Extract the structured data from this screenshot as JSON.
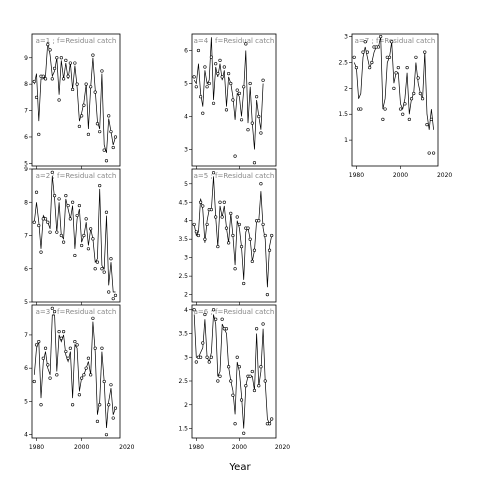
{
  "chart_data": {
    "type": "line",
    "title": "",
    "xlabel": "Year",
    "ylabel": "",
    "grid": false,
    "panels": [
      {
        "title": "a=1 ; f=Residual catch",
        "xlim": [
          1978,
          2017
        ],
        "ylim": [
          4.9,
          9.9
        ],
        "yticks": [
          5,
          6,
          7,
          8,
          9
        ],
        "xticks": [
          1980,
          2000,
          2020
        ],
        "show_xticks": false,
        "points_x": [
          1979,
          1980,
          1981,
          1982,
          1983,
          1984,
          1985,
          1986,
          1987,
          1988,
          1989,
          1990,
          1991,
          1992,
          1993,
          1994,
          1995,
          1996,
          1997,
          1998,
          1999,
          2000,
          2001,
          2002,
          2003,
          2004,
          2005,
          2006,
          2007,
          2008,
          2009,
          2010,
          2011,
          2012,
          2013,
          2014,
          2015
        ],
        "points_y": [
          8.1,
          7.5,
          6.1,
          8.3,
          8.3,
          8.2,
          9.5,
          9.3,
          8.2,
          8.6,
          9.0,
          7.4,
          9.0,
          8.2,
          8.9,
          8.3,
          8.8,
          7.8,
          8.8,
          8.0,
          6.4,
          6.8,
          7.2,
          8.0,
          6.1,
          7.9,
          9.1,
          7.7,
          6.5,
          6.2,
          8.5,
          5.5,
          5.1,
          6.8,
          6.2,
          5.6,
          6.0
        ],
        "line_y": [
          8.0,
          8.4,
          6.6,
          8.2,
          8.2,
          8.3,
          9.6,
          9.1,
          8.3,
          8.5,
          9.0,
          7.6,
          8.9,
          8.2,
          8.8,
          8.2,
          8.8,
          7.8,
          8.7,
          7.9,
          6.6,
          6.9,
          7.3,
          8.0,
          6.3,
          7.9,
          9.0,
          7.8,
          6.6,
          6.3,
          8.4,
          5.7,
          5.4,
          6.7,
          6.2,
          5.7,
          6.0
        ]
      },
      {
        "title": "a=4 ; f=Residual catch",
        "xlim": [
          1978,
          2017
        ],
        "ylim": [
          2.5,
          6.5
        ],
        "yticks": [
          3,
          4,
          5,
          6
        ],
        "xticks": [
          1980,
          2000,
          2020
        ],
        "show_xticks": false,
        "points_x": [
          1979,
          1980,
          1981,
          1982,
          1983,
          1984,
          1985,
          1986,
          1987,
          1988,
          1989,
          1990,
          1991,
          1992,
          1993,
          1994,
          1995,
          1996,
          1997,
          1998,
          1999,
          2000,
          2001,
          2002,
          2003,
          2004,
          2005,
          2006,
          2007,
          2008,
          2009,
          2010,
          2011
        ],
        "points_y": [
          5.2,
          4.9,
          6.0,
          4.6,
          4.1,
          5.5,
          4.9,
          5.0,
          5.8,
          4.4,
          5.6,
          5.3,
          5.7,
          5.2,
          5.5,
          4.2,
          5.3,
          5.0,
          4.5,
          2.8,
          4.8,
          4.7,
          3.9,
          4.9,
          6.2,
          3.6,
          5.0,
          3.8,
          2.6,
          4.6,
          4.0,
          3.5,
          5.1
        ],
        "line_y": [
          5.1,
          5.0,
          5.6,
          4.7,
          4.3,
          5.4,
          5.0,
          5.1,
          6.4,
          4.5,
          5.5,
          5.2,
          5.6,
          5.1,
          5.4,
          4.3,
          5.2,
          5.0,
          4.6,
          3.9,
          4.7,
          4.6,
          4.0,
          4.8,
          6.0,
          3.8,
          4.9,
          3.8,
          3.0,
          4.5,
          4.0,
          3.6,
          5.0
        ]
      },
      {
        "title": "a=7 ; f=Residual catch",
        "xlim": [
          1978,
          2017
        ],
        "ylim": [
          0.5,
          3.05
        ],
        "yticks": [
          1.0,
          1.5,
          2.0,
          2.5,
          3.0
        ],
        "xticks": [
          1980,
          2000,
          2020
        ],
        "show_xticks": true,
        "points_x": [
          1979,
          1980,
          1981,
          1982,
          1983,
          1984,
          1985,
          1986,
          1987,
          1988,
          1989,
          1990,
          1991,
          1992,
          1993,
          1994,
          1995,
          1996,
          1997,
          1998,
          1999,
          2000,
          2001,
          2002,
          2003,
          2004,
          2005,
          2006,
          2007,
          2008,
          2009,
          2010,
          2011,
          2012,
          2013,
          2014,
          2015
        ],
        "points_y": [
          2.6,
          2.4,
          1.6,
          1.6,
          2.7,
          2.9,
          2.7,
          2.4,
          2.5,
          2.8,
          2.8,
          2.8,
          3.0,
          1.4,
          1.6,
          2.6,
          2.6,
          2.9,
          2.0,
          2.3,
          2.4,
          1.6,
          1.5,
          1.7,
          2.4,
          1.4,
          1.8,
          1.9,
          2.6,
          2.2,
          1.9,
          1.8,
          2.7,
          1.3,
          0.75,
          1.4,
          0.75
        ],
        "line_y": [
          2.5,
          2.4,
          1.8,
          1.9,
          2.6,
          2.8,
          2.6,
          2.4,
          2.5,
          2.7,
          2.8,
          2.8,
          3.0,
          1.6,
          1.8,
          2.5,
          2.6,
          2.9,
          2.1,
          2.3,
          2.3,
          1.7,
          1.6,
          1.8,
          2.3,
          1.5,
          1.8,
          1.9,
          2.5,
          2.1,
          1.9,
          1.8,
          2.7,
          1.5,
          1.2,
          1.6,
          1.2
        ]
      },
      {
        "title": "a=2 ; f=Residual catch",
        "xlim": [
          1978,
          2017
        ],
        "ylim": [
          5.0,
          9.0
        ],
        "yticks": [
          5,
          6,
          7,
          8,
          9
        ],
        "xticks": [
          1980,
          2000,
          2020
        ],
        "show_xticks": false,
        "points_x": [
          1979,
          1980,
          1981,
          1982,
          1983,
          1984,
          1985,
          1986,
          1987,
          1988,
          1989,
          1990,
          1991,
          1992,
          1993,
          1994,
          1995,
          1996,
          1997,
          1998,
          1999,
          2000,
          2001,
          2002,
          2003,
          2004,
          2005,
          2006,
          2007,
          2008,
          2009,
          2010,
          2011,
          2012,
          2013,
          2014,
          2015
        ],
        "points_y": [
          7.4,
          8.3,
          7.3,
          6.5,
          7.5,
          7.5,
          7.4,
          7.1,
          8.9,
          8.2,
          7.1,
          8.1,
          7.0,
          6.8,
          8.2,
          7.9,
          7.5,
          8.0,
          6.4,
          7.6,
          7.9,
          6.7,
          7.0,
          7.5,
          6.6,
          7.2,
          6.9,
          6.0,
          6.2,
          8.5,
          6.0,
          5.9,
          7.7,
          5.3,
          6.3,
          5.1,
          5.2
        ],
        "line_y": [
          7.4,
          8.0,
          7.4,
          6.6,
          7.6,
          7.5,
          7.4,
          7.2,
          8.8,
          8.1,
          7.1,
          8.0,
          7.0,
          6.9,
          8.1,
          7.8,
          7.5,
          7.9,
          6.6,
          7.5,
          7.8,
          6.8,
          7.0,
          7.4,
          6.7,
          7.2,
          6.9,
          6.2,
          6.3,
          8.4,
          6.1,
          6.0,
          7.6,
          5.5,
          6.2,
          5.3,
          5.3
        ]
      },
      {
        "title": "a=5 ; f=Residual catch",
        "xlim": [
          1978,
          2017
        ],
        "ylim": [
          1.8,
          5.4
        ],
        "yticks": [
          2.0,
          2.5,
          3.0,
          3.5,
          4.0,
          4.5,
          5.0
        ],
        "xticks": [
          1980,
          2000,
          2020
        ],
        "show_xticks": false,
        "points_x": [
          1979,
          1980,
          1981,
          1982,
          1983,
          1984,
          1985,
          1986,
          1987,
          1988,
          1989,
          1990,
          1991,
          1992,
          1993,
          1994,
          1995,
          1996,
          1997,
          1998,
          1999,
          2000,
          2001,
          2002,
          2003,
          2004,
          2005,
          2006,
          2007,
          2008,
          2009,
          2010,
          2011,
          2012,
          2013,
          2014,
          2015
        ],
        "points_y": [
          3.9,
          3.7,
          3.6,
          4.5,
          4.4,
          3.5,
          3.9,
          4.3,
          4.3,
          5.3,
          4.1,
          3.3,
          4.5,
          4.1,
          4.5,
          3.8,
          3.4,
          4.2,
          3.6,
          2.7,
          4.1,
          3.9,
          3.3,
          2.3,
          3.8,
          3.8,
          3.5,
          2.9,
          3.2,
          4.0,
          4.0,
          5.0,
          3.9,
          3.6,
          2.0,
          3.2,
          3.6
        ],
        "line_y": [
          3.9,
          3.6,
          3.7,
          4.6,
          4.3,
          3.4,
          4.0,
          4.3,
          4.3,
          5.2,
          4.1,
          3.3,
          4.4,
          4.1,
          4.4,
          3.8,
          3.4,
          4.2,
          3.6,
          2.8,
          4.0,
          3.8,
          3.3,
          2.4,
          3.7,
          3.8,
          3.5,
          2.9,
          3.2,
          4.0,
          4.0,
          4.8,
          3.8,
          3.5,
          2.2,
          3.3,
          3.6
        ]
      },
      {
        "title": "a=3 ; f=Residual catch",
        "xlim": [
          1978,
          2017
        ],
        "ylim": [
          3.9,
          7.9
        ],
        "yticks": [
          4,
          5,
          6,
          7
        ],
        "xticks": [
          1980,
          2000,
          2020
        ],
        "show_xticks": true,
        "points_x": [
          1979,
          1980,
          1981,
          1982,
          1983,
          1984,
          1985,
          1986,
          1987,
          1988,
          1989,
          1990,
          1991,
          1992,
          1993,
          1994,
          1995,
          1996,
          1997,
          1998,
          1999,
          2000,
          2001,
          2002,
          2003,
          2004,
          2005,
          2006,
          2007,
          2008,
          2009,
          2010,
          2011,
          2012,
          2013,
          2014,
          2015
        ],
        "points_y": [
          5.6,
          6.7,
          6.8,
          4.9,
          6.3,
          6.6,
          6.1,
          5.7,
          7.8,
          7.7,
          5.8,
          7.1,
          6.9,
          7.1,
          6.5,
          6.3,
          6.6,
          4.9,
          6.8,
          6.7,
          5.2,
          5.7,
          5.8,
          6.0,
          6.3,
          5.8,
          7.5,
          6.6,
          4.4,
          4.9,
          6.6,
          5.6,
          4.0,
          4.9,
          5.5,
          4.5,
          4.8
        ],
        "line_y": [
          5.8,
          6.6,
          6.8,
          5.1,
          6.2,
          6.5,
          6.0,
          5.8,
          7.6,
          7.6,
          5.9,
          7.0,
          6.8,
          7.0,
          6.4,
          6.2,
          6.5,
          5.1,
          6.7,
          6.6,
          5.3,
          5.7,
          5.8,
          6.0,
          6.2,
          5.8,
          7.4,
          6.5,
          4.6,
          5.0,
          6.5,
          5.6,
          4.2,
          5.0,
          5.4,
          4.6,
          4.8
        ]
      },
      {
        "title": "a=6 ; f=Residual catch",
        "xlim": [
          1978,
          2017
        ],
        "ylim": [
          1.3,
          4.1
        ],
        "yticks": [
          1.5,
          2.0,
          2.5,
          3.0,
          3.5,
          4.0
        ],
        "xticks": [
          1980,
          2000,
          2020
        ],
        "show_xticks": true,
        "points_x": [
          1979,
          1980,
          1981,
          1982,
          1983,
          1984,
          1985,
          1986,
          1987,
          1988,
          1989,
          1990,
          1991,
          1992,
          1993,
          1994,
          1995,
          1996,
          1997,
          1998,
          1999,
          2000,
          2001,
          2002,
          2003,
          2004,
          2005,
          2006,
          2007,
          2008,
          2009,
          2010,
          2011,
          2012,
          2013,
          2014,
          2015
        ],
        "points_y": [
          4.0,
          2.9,
          3.0,
          3.0,
          3.3,
          3.9,
          3.0,
          2.9,
          3.0,
          4.0,
          3.8,
          2.5,
          2.6,
          3.8,
          3.6,
          3.6,
          2.8,
          2.5,
          2.2,
          1.6,
          3.0,
          2.8,
          2.1,
          1.4,
          2.4,
          2.6,
          2.6,
          2.7,
          2.3,
          3.6,
          2.4,
          2.8,
          3.7,
          2.5,
          1.6,
          1.6,
          1.7
        ],
        "line_y": [
          3.9,
          3.0,
          3.0,
          3.1,
          3.2,
          3.8,
          3.0,
          2.9,
          3.1,
          3.9,
          3.7,
          2.6,
          2.7,
          3.7,
          3.6,
          3.5,
          2.8,
          2.5,
          2.3,
          1.8,
          2.9,
          2.7,
          2.2,
          1.5,
          2.4,
          2.6,
          2.6,
          2.6,
          2.3,
          3.5,
          2.4,
          2.7,
          3.6,
          2.5,
          1.7,
          1.6,
          1.7
        ]
      }
    ]
  }
}
